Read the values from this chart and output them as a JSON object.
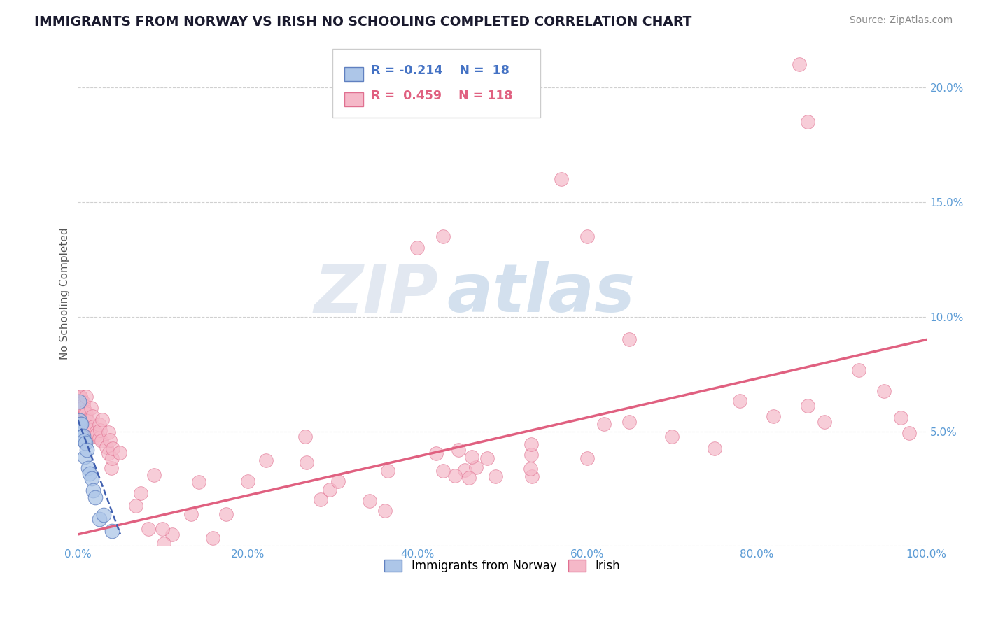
{
  "title": "IMMIGRANTS FROM NORWAY VS IRISH NO SCHOOLING COMPLETED CORRELATION CHART",
  "source": "Source: ZipAtlas.com",
  "ylabel_label": "No Schooling Completed",
  "watermark_zip": "ZIP",
  "watermark_atlas": "atlas",
  "legend_blue_label": "Immigrants from Norway",
  "legend_pink_label": "Irish",
  "blue_R": -0.214,
  "blue_N": 18,
  "pink_R": 0.459,
  "pink_N": 118,
  "blue_color": "#adc6e8",
  "pink_color": "#f5b8c8",
  "blue_edge_color": "#6080c0",
  "pink_edge_color": "#e07090",
  "blue_line_color": "#4060b0",
  "pink_line_color": "#e06080",
  "background_color": "#ffffff",
  "grid_color": "#d0d0d0",
  "title_color": "#1a1a2e",
  "source_color": "#888888",
  "tick_color": "#5b9bd5",
  "ylabel_color": "#555555",
  "legend_text_blue_color": "#4472c4",
  "legend_text_pink_color": "#e06080",
  "xlim": [
    0.0,
    1.0
  ],
  "ylim": [
    0.0,
    0.22
  ],
  "x_ticks": [
    0.0,
    0.2,
    0.4,
    0.6,
    0.8,
    1.0
  ],
  "x_tick_labels": [
    "0.0%",
    "20.0%",
    "40.0%",
    "60.0%",
    "80.0%",
    "100.0%"
  ],
  "y_ticks": [
    0.0,
    0.05,
    0.1,
    0.15,
    0.2
  ],
  "y_tick_labels": [
    "",
    "5.0%",
    "10.0%",
    "15.0%",
    "20.0%"
  ],
  "pink_trend_x0": 0.0,
  "pink_trend_y0": 0.005,
  "pink_trend_x1": 1.0,
  "pink_trend_y1": 0.09,
  "blue_trend_x0": 0.0,
  "blue_trend_y0": 0.055,
  "blue_trend_x1": 0.05,
  "blue_trend_y1": 0.005
}
